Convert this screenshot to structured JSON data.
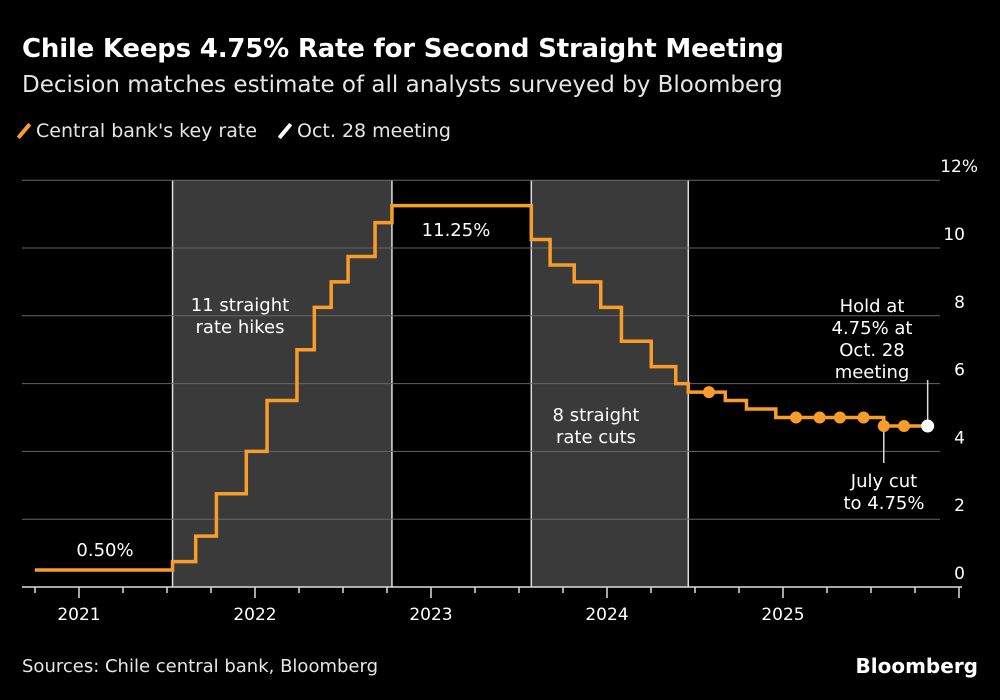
{
  "title": "Chile Keeps 4.75% Rate for Second Straight Meeting",
  "subtitle": "Decision matches estimate of all analysts surveyed by Bloomberg",
  "legend": [
    {
      "label": "Central bank's key rate",
      "color": "#f99d2a"
    },
    {
      "label": "Oct. 28 meeting",
      "color": "#ffffff"
    }
  ],
  "source": "Sources: Chile central bank, Bloomberg",
  "logo": "Bloomberg",
  "chart_data": {
    "type": "line",
    "step": true,
    "ylim": [
      0,
      12
    ],
    "yticks": [
      0,
      2,
      4,
      6,
      8,
      10,
      12
    ],
    "ytick_labels": [
      "0",
      "2",
      "4",
      "6",
      "8",
      "10",
      "12%"
    ],
    "y_axis_side": "right",
    "xlim": [
      "2020-10-01",
      "2025-11-25"
    ],
    "xticks": [
      "2021-01-01",
      "2022-01-01",
      "2023-01-01",
      "2024-01-01",
      "2025-01-01"
    ],
    "xtick_labels": [
      "2021",
      "2022",
      "2023",
      "2024",
      "2025"
    ],
    "grid": "horizontal",
    "legend_position": "top-left",
    "series": [
      {
        "name": "Central bank's key rate",
        "color": "#f99d2a",
        "points": [
          [
            "2020-10-01",
            0.5
          ],
          [
            "2021-07-14",
            0.75
          ],
          [
            "2021-08-31",
            1.5
          ],
          [
            "2021-10-13",
            2.75
          ],
          [
            "2021-12-14",
            4.0
          ],
          [
            "2022-01-26",
            5.5
          ],
          [
            "2022-03-29",
            7.0
          ],
          [
            "2022-05-04",
            8.25
          ],
          [
            "2022-06-08",
            9.0
          ],
          [
            "2022-07-13",
            9.75
          ],
          [
            "2022-09-07",
            10.75
          ],
          [
            "2022-10-12",
            11.25
          ],
          [
            "2023-07-28",
            10.25
          ],
          [
            "2023-09-05",
            9.5
          ],
          [
            "2023-10-25",
            9.0
          ],
          [
            "2023-12-19",
            8.25
          ],
          [
            "2024-01-31",
            7.25
          ],
          [
            "2024-04-02",
            6.5
          ],
          [
            "2024-05-23",
            6.0
          ],
          [
            "2024-06-18",
            5.75
          ],
          [
            "2024-09-03",
            5.5
          ],
          [
            "2024-10-17",
            5.25
          ],
          [
            "2024-12-17",
            5.0
          ],
          [
            "2025-07-29",
            4.75
          ],
          [
            "2025-10-28",
            4.75
          ]
        ],
        "markers": [
          [
            "2024-07-31",
            5.75
          ],
          [
            "2025-01-28",
            5.0
          ],
          [
            "2025-03-18",
            5.0
          ],
          [
            "2025-04-29",
            5.0
          ],
          [
            "2025-06-17",
            5.0
          ],
          [
            "2025-07-29",
            4.75
          ],
          [
            "2025-09-09",
            4.75
          ]
        ]
      },
      {
        "name": "Oct. 28 meeting",
        "color": "#ffffff",
        "markers": [
          [
            "2025-10-28",
            4.75
          ]
        ]
      }
    ],
    "shaded_regions": [
      {
        "start": "2021-07-14",
        "end": "2022-10-12",
        "color": "#3a3a3a"
      },
      {
        "start": "2023-07-28",
        "end": "2024-06-18",
        "color": "#3a3a3a"
      }
    ],
    "annotations": [
      {
        "lines": [
          "11 straight",
          "rate hikes"
        ]
      },
      {
        "lines": [
          "11.25%"
        ]
      },
      {
        "lines": [
          "0.50%"
        ]
      },
      {
        "lines": [
          "8 straight",
          "rate cuts"
        ]
      },
      {
        "lines": [
          "Hold at",
          "4.75% at",
          "Oct. 28",
          "meeting"
        ]
      },
      {
        "lines": [
          "July cut",
          "to 4.75%"
        ]
      }
    ]
  }
}
